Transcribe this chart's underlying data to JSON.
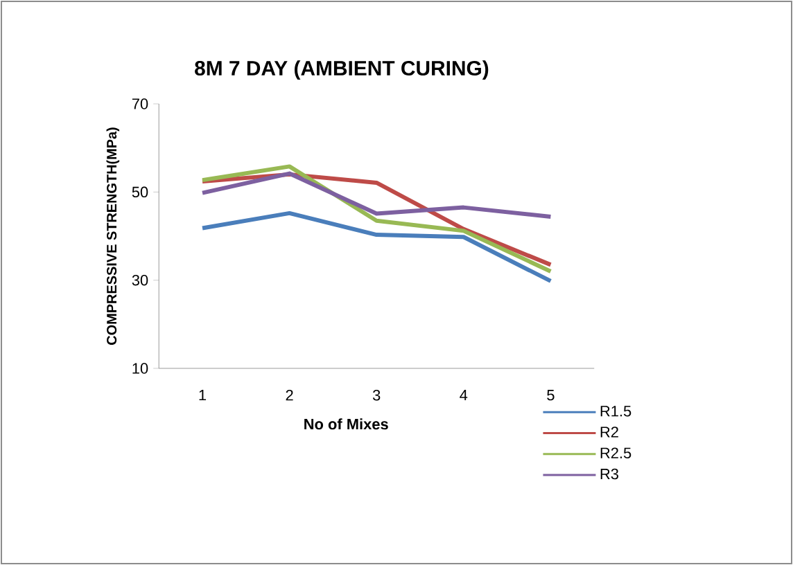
{
  "chart_data": {
    "type": "line",
    "title": "8M 7 DAY (AMBIENT CURING)",
    "xlabel": "No of Mixes",
    "ylabel": "COMPRESSIVE STRENGTH(MPa)",
    "categories": [
      "1",
      "2",
      "3",
      "4",
      "5"
    ],
    "series": [
      {
        "name": "R1.5",
        "color": "#4a7ebb",
        "values": [
          41.8,
          45.2,
          40.3,
          39.8,
          29.8
        ]
      },
      {
        "name": "R2",
        "color": "#be4b48",
        "values": [
          52.4,
          54.0,
          52.1,
          41.6,
          33.5
        ]
      },
      {
        "name": "R2.5",
        "color": "#98b954",
        "values": [
          52.7,
          55.8,
          43.5,
          41.2,
          32.0
        ]
      },
      {
        "name": "R3",
        "color": "#7d60a0",
        "values": [
          49.8,
          54.2,
          45.1,
          46.5,
          44.4
        ]
      }
    ],
    "ylim": [
      10,
      70
    ],
    "yticks": [
      10,
      30,
      50,
      70
    ],
    "grid": false,
    "legend": "bottom right",
    "marker": "none",
    "line_style": "solid"
  }
}
